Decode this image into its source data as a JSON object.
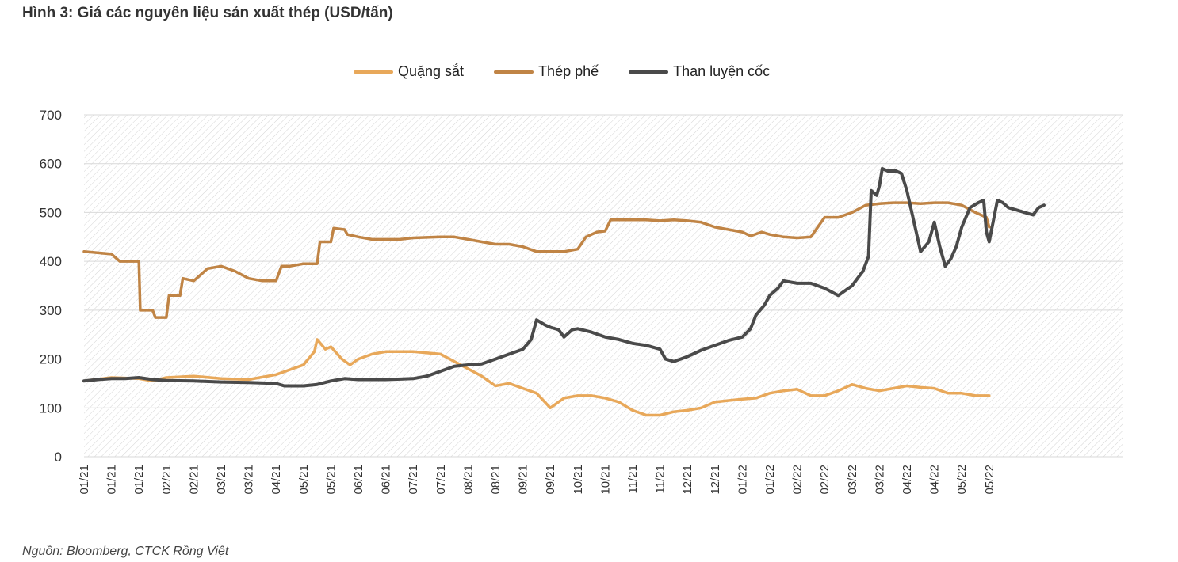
{
  "figure": {
    "title": "Hình 3: Giá các nguyên liệu sản xuất thép (USD/tấn)",
    "source": "Nguồn: Bloomberg, CTCK Rồng Việt"
  },
  "colors": {
    "iron_ore": "#e8a85a",
    "scrap": "#c08445",
    "coal": "#4a4a4a",
    "grid": "#d9d9d9"
  },
  "chart_data": {
    "type": "line",
    "title": "Giá các nguyên liệu sản xuất thép (USD/tấn)",
    "ylim": [
      0,
      700
    ],
    "yticks": [
      0,
      100,
      200,
      300,
      400,
      500,
      600,
      700
    ],
    "grid": true,
    "legend_position": "top-center",
    "x_tick_labels": [
      "01/21",
      "01/21",
      "01/21",
      "02/21",
      "02/21",
      "03/21",
      "03/21",
      "04/21",
      "05/21",
      "05/21",
      "06/21",
      "06/21",
      "07/21",
      "07/21",
      "08/21",
      "08/21",
      "09/21",
      "09/21",
      "10/21",
      "10/21",
      "11/21",
      "11/21",
      "12/21",
      "12/21",
      "01/22",
      "01/22",
      "02/22",
      "02/22",
      "03/22",
      "03/22",
      "04/22",
      "04/22",
      "05/22",
      "05/22"
    ],
    "series": [
      {
        "name": "Quặng sắt",
        "color": "#e8a85a",
        "points": [
          [
            0,
            155
          ],
          [
            1,
            162
          ],
          [
            2,
            160
          ],
          [
            2.5,
            155
          ],
          [
            3,
            162
          ],
          [
            4,
            165
          ],
          [
            5,
            160
          ],
          [
            6,
            158
          ],
          [
            7,
            168
          ],
          [
            7.5,
            178
          ],
          [
            8,
            188
          ],
          [
            8.4,
            215
          ],
          [
            8.5,
            240
          ],
          [
            8.8,
            220
          ],
          [
            9,
            225
          ],
          [
            9.4,
            200
          ],
          [
            9.7,
            188
          ],
          [
            10,
            200
          ],
          [
            10.5,
            210
          ],
          [
            11,
            215
          ],
          [
            12,
            215
          ],
          [
            13,
            210
          ],
          [
            13.5,
            195
          ],
          [
            14,
            180
          ],
          [
            14.5,
            165
          ],
          [
            15,
            145
          ],
          [
            15.5,
            150
          ],
          [
            16,
            140
          ],
          [
            16.5,
            130
          ],
          [
            17,
            100
          ],
          [
            17.5,
            120
          ],
          [
            18,
            125
          ],
          [
            18.5,
            125
          ],
          [
            19,
            120
          ],
          [
            19.5,
            112
          ],
          [
            20,
            95
          ],
          [
            20.5,
            85
          ],
          [
            21,
            85
          ],
          [
            21.5,
            92
          ],
          [
            22,
            95
          ],
          [
            22.5,
            100
          ],
          [
            23,
            112
          ],
          [
            23.5,
            115
          ],
          [
            24,
            118
          ],
          [
            24.5,
            120
          ],
          [
            25,
            130
          ],
          [
            25.5,
            135
          ],
          [
            26,
            138
          ],
          [
            26.5,
            125
          ],
          [
            27,
            125
          ],
          [
            27.5,
            135
          ],
          [
            28,
            148
          ],
          [
            28.5,
            140
          ],
          [
            29,
            135
          ],
          [
            29.5,
            140
          ],
          [
            30,
            145
          ],
          [
            30.5,
            142
          ],
          [
            31,
            140
          ],
          [
            31.5,
            130
          ],
          [
            32,
            130
          ],
          [
            32.5,
            125
          ],
          [
            33,
            125
          ]
        ]
      },
      {
        "name": "Thép phế",
        "color": "#c08445",
        "points": [
          [
            0,
            420
          ],
          [
            1,
            415
          ],
          [
            1.3,
            400
          ],
          [
            2,
            400
          ],
          [
            2.05,
            300
          ],
          [
            2.5,
            300
          ],
          [
            2.6,
            285
          ],
          [
            3,
            285
          ],
          [
            3.1,
            330
          ],
          [
            3.5,
            330
          ],
          [
            3.6,
            365
          ],
          [
            4,
            360
          ],
          [
            4.5,
            385
          ],
          [
            5,
            390
          ],
          [
            5.5,
            380
          ],
          [
            6,
            365
          ],
          [
            6.5,
            360
          ],
          [
            7,
            360
          ],
          [
            7.2,
            390
          ],
          [
            7.5,
            390
          ],
          [
            8,
            395
          ],
          [
            8.5,
            395
          ],
          [
            8.6,
            440
          ],
          [
            9,
            440
          ],
          [
            9.1,
            468
          ],
          [
            9.5,
            465
          ],
          [
            9.6,
            455
          ],
          [
            10,
            450
          ],
          [
            10.5,
            445
          ],
          [
            11,
            445
          ],
          [
            11.5,
            445
          ],
          [
            12,
            448
          ],
          [
            13,
            450
          ],
          [
            13.5,
            450
          ],
          [
            14,
            445
          ],
          [
            14.5,
            440
          ],
          [
            15,
            435
          ],
          [
            15.5,
            435
          ],
          [
            16,
            430
          ],
          [
            16.5,
            420
          ],
          [
            17,
            420
          ],
          [
            17.5,
            420
          ],
          [
            18,
            425
          ],
          [
            18.3,
            450
          ],
          [
            18.7,
            460
          ],
          [
            19,
            462
          ],
          [
            19.2,
            485
          ],
          [
            19.5,
            485
          ],
          [
            20,
            485
          ],
          [
            20.5,
            485
          ],
          [
            21,
            483
          ],
          [
            21.5,
            485
          ],
          [
            22,
            483
          ],
          [
            22.5,
            480
          ],
          [
            23,
            470
          ],
          [
            23.5,
            465
          ],
          [
            24,
            460
          ],
          [
            24.3,
            452
          ],
          [
            24.7,
            460
          ],
          [
            25,
            455
          ],
          [
            25.5,
            450
          ],
          [
            26,
            448
          ],
          [
            26.5,
            450
          ],
          [
            27,
            490
          ],
          [
            27.5,
            490
          ],
          [
            28,
            500
          ],
          [
            28.5,
            515
          ],
          [
            29,
            518
          ],
          [
            29.5,
            520
          ],
          [
            30,
            520
          ],
          [
            30.5,
            518
          ],
          [
            31,
            520
          ],
          [
            31.5,
            520
          ],
          [
            32,
            515
          ],
          [
            32.5,
            500
          ],
          [
            32.9,
            490
          ],
          [
            33,
            470
          ]
        ]
      },
      {
        "name": "Than luyện cốc",
        "color": "#4a4a4a",
        "points": [
          [
            0,
            155
          ],
          [
            0.5,
            158
          ],
          [
            1,
            160
          ],
          [
            1.5,
            160
          ],
          [
            2,
            162
          ],
          [
            2.5,
            158
          ],
          [
            3,
            156
          ],
          [
            4,
            155
          ],
          [
            5,
            153
          ],
          [
            6,
            152
          ],
          [
            7,
            150
          ],
          [
            7.3,
            145
          ],
          [
            8,
            145
          ],
          [
            8.5,
            148
          ],
          [
            9,
            155
          ],
          [
            9.5,
            160
          ],
          [
            10,
            158
          ],
          [
            11,
            158
          ],
          [
            12,
            160
          ],
          [
            12.5,
            165
          ],
          [
            13,
            175
          ],
          [
            13.5,
            185
          ],
          [
            14,
            188
          ],
          [
            14.5,
            190
          ],
          [
            15,
            200
          ],
          [
            15.5,
            210
          ],
          [
            16,
            220
          ],
          [
            16.3,
            240
          ],
          [
            16.5,
            280
          ],
          [
            16.8,
            270
          ],
          [
            17,
            265
          ],
          [
            17.3,
            260
          ],
          [
            17.5,
            245
          ],
          [
            17.8,
            260
          ],
          [
            18,
            262
          ],
          [
            18.5,
            255
          ],
          [
            19,
            245
          ],
          [
            19.5,
            240
          ],
          [
            20,
            232
          ],
          [
            20.5,
            228
          ],
          [
            21,
            220
          ],
          [
            21.2,
            200
          ],
          [
            21.5,
            195
          ],
          [
            22,
            205
          ],
          [
            22.5,
            218
          ],
          [
            23,
            228
          ],
          [
            23.5,
            238
          ],
          [
            24,
            245
          ],
          [
            24.3,
            262
          ],
          [
            24.5,
            290
          ],
          [
            24.8,
            310
          ],
          [
            25,
            330
          ],
          [
            25.3,
            345
          ],
          [
            25.5,
            360
          ],
          [
            26,
            355
          ],
          [
            26.5,
            355
          ],
          [
            27,
            345
          ],
          [
            27.5,
            330
          ],
          [
            28,
            350
          ],
          [
            28.2,
            365
          ],
          [
            28.4,
            380
          ],
          [
            28.6,
            410
          ],
          [
            28.7,
            545
          ],
          [
            28.9,
            535
          ],
          [
            29,
            555
          ],
          [
            29.1,
            590
          ],
          [
            29.3,
            585
          ],
          [
            29.6,
            585
          ],
          [
            29.8,
            580
          ],
          [
            30,
            545
          ],
          [
            30.3,
            470
          ],
          [
            30.5,
            420
          ],
          [
            30.8,
            440
          ],
          [
            31,
            480
          ],
          [
            31.2,
            430
          ],
          [
            31.4,
            390
          ],
          [
            31.6,
            405
          ],
          [
            31.8,
            430
          ],
          [
            32,
            470
          ],
          [
            32.3,
            510
          ],
          [
            32.6,
            520
          ],
          [
            32.8,
            525
          ],
          [
            32.9,
            460
          ],
          [
            33,
            440
          ],
          [
            33.3,
            525
          ],
          [
            33.5,
            520
          ],
          [
            33.7,
            510
          ],
          [
            34,
            505
          ],
          [
            34.3,
            500
          ],
          [
            34.6,
            495
          ],
          [
            34.8,
            510
          ],
          [
            35,
            515
          ]
        ]
      }
    ]
  }
}
